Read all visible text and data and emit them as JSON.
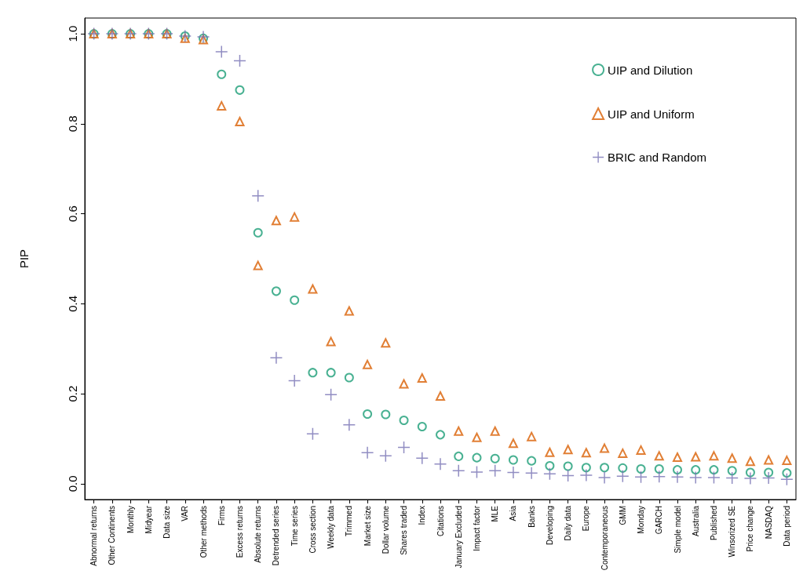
{
  "chart_data": {
    "type": "scatter",
    "ylabel": "PIP",
    "categories": [
      "Abnormal returns",
      "Other Continents",
      "Monthly",
      "Midyear",
      "Data size",
      "VAR",
      "Other methods",
      "Firms",
      "Excess returns",
      "Absolute returns",
      "Detrended series",
      "Time series",
      "Cross section",
      "Weekly data",
      "Trimmed",
      "Market size",
      "Dollar volume",
      "Shares traded",
      "Index",
      "Citations",
      "January Excluded",
      "Impact factor",
      "MLE",
      "Asia",
      "Banks",
      "Developing",
      "Daily data",
      "Europe",
      "Contemporaneous",
      "GMM",
      "Monday",
      "GARCH",
      "Simple model",
      "Australia",
      "Published",
      "Winsorized SE",
      "Price change",
      "NASDAQ",
      "Data period"
    ],
    "series": [
      {
        "name": "UIP and Dilution",
        "color": "#1b9e77",
        "marker": "circle",
        "values": [
          1.0,
          1.0,
          1.0,
          1.0,
          1.0,
          0.995,
          0.99,
          0.91,
          0.875,
          0.558,
          0.428,
          0.408,
          0.247,
          0.247,
          0.236,
          0.155,
          0.154,
          0.141,
          0.127,
          0.109,
          0.061,
          0.058,
          0.056,
          0.053,
          0.051,
          0.04,
          0.039,
          0.036,
          0.036,
          0.035,
          0.033,
          0.033,
          0.031,
          0.031,
          0.031,
          0.029,
          0.025,
          0.025,
          0.024
        ]
      },
      {
        "name": "UIP and Uniform",
        "color": "#d95f02",
        "marker": "triangle",
        "values": [
          1.0,
          1.0,
          1.0,
          1.0,
          1.0,
          0.99,
          0.987,
          0.84,
          0.805,
          0.485,
          0.585,
          0.593,
          0.433,
          0.316,
          0.384,
          0.265,
          0.313,
          0.222,
          0.235,
          0.195,
          0.117,
          0.103,
          0.117,
          0.09,
          0.105,
          0.07,
          0.076,
          0.069,
          0.079,
          0.068,
          0.075,
          0.062,
          0.059,
          0.06,
          0.062,
          0.057,
          0.05,
          0.053,
          0.052
        ]
      },
      {
        "name": "BRIC and Random",
        "color": "#7570b3",
        "marker": "cross",
        "values": [
          1.0,
          1.0,
          1.0,
          1.0,
          1.0,
          0.995,
          0.993,
          0.96,
          0.94,
          0.64,
          0.28,
          0.229,
          0.111,
          0.198,
          0.131,
          0.069,
          0.062,
          0.081,
          0.057,
          0.044,
          0.029,
          0.026,
          0.029,
          0.025,
          0.024,
          0.022,
          0.018,
          0.019,
          0.014,
          0.017,
          0.015,
          0.016,
          0.015,
          0.014,
          0.014,
          0.013,
          0.012,
          0.013,
          0.01
        ]
      }
    ],
    "ylim": [
      -0.035,
      1.035
    ],
    "yticks": [
      {
        "value": 0,
        "label": "0.0"
      },
      {
        "value": 0.2,
        "label": "0.2"
      },
      {
        "value": 0.4,
        "label": "0.4"
      },
      {
        "value": 0.6,
        "label": "0.6"
      },
      {
        "value": 0.8,
        "label": "0.8"
      },
      {
        "value": 1.0,
        "label": "1.0"
      }
    ],
    "legend": "top right",
    "grid": false
  }
}
